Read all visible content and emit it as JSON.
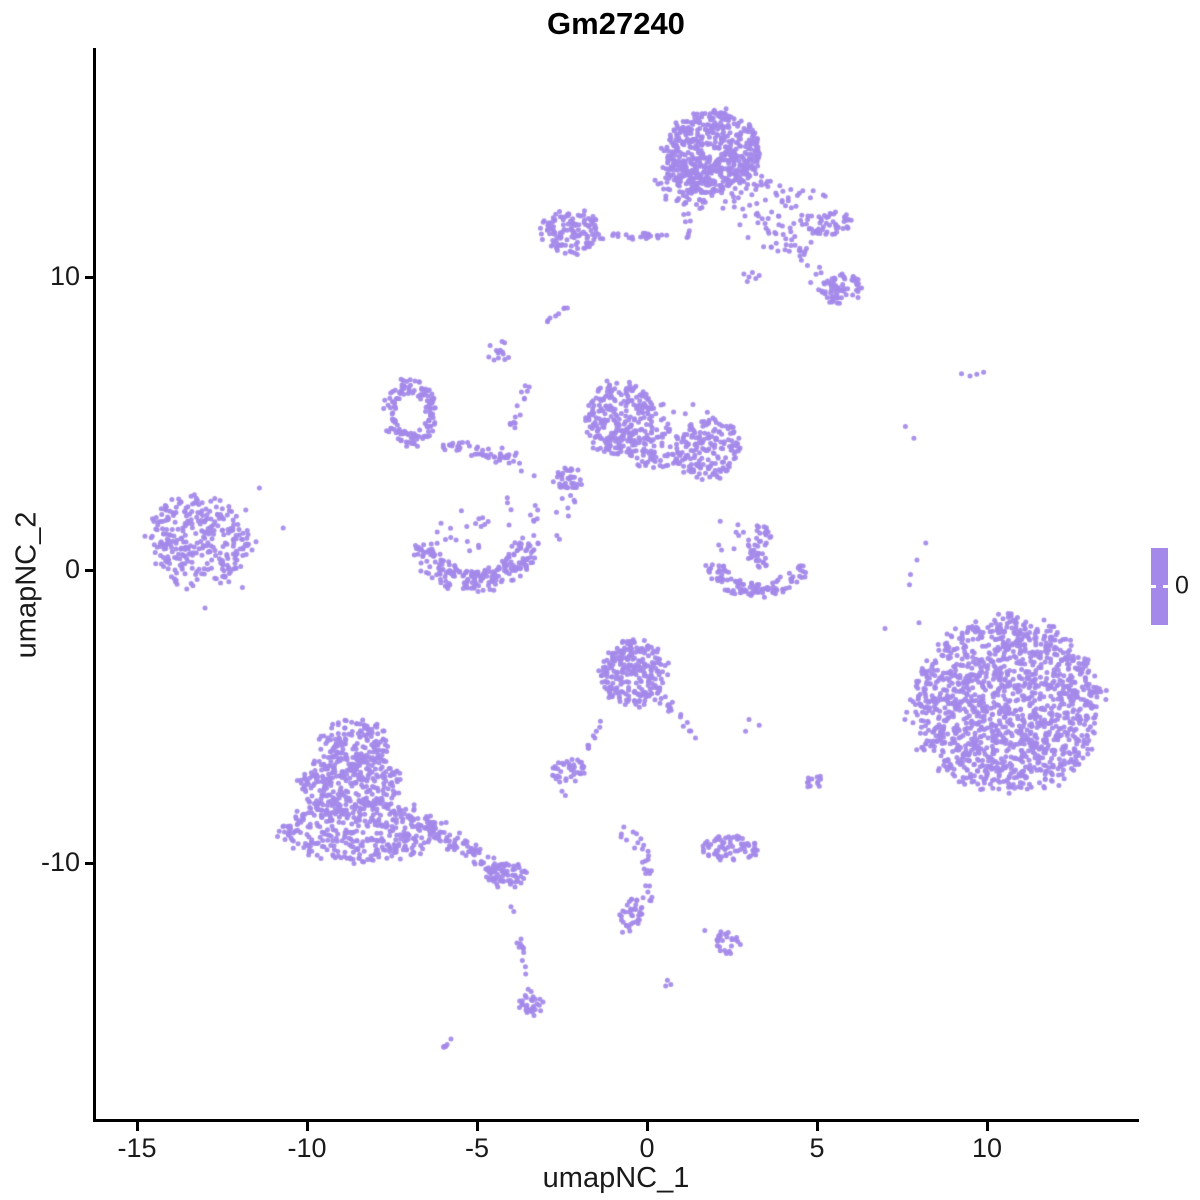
{
  "chart_data": {
    "type": "scatter",
    "title": "Gm27240",
    "xlabel": "umapNC_1",
    "ylabel": "umapNC_2",
    "x_ticks": [
      -15,
      -10,
      -5,
      0,
      5,
      10
    ],
    "y_ticks": [
      -10,
      0,
      10
    ],
    "xlim": [
      -16.2,
      14.4
    ],
    "ylim": [
      -18.8,
      17.8
    ],
    "grid": false,
    "legend": {
      "label": "0",
      "position": "right",
      "color": "#a489ea"
    },
    "point_color": "#a489ea",
    "point_radius": 2.5,
    "clusters": [
      {
        "name": "top-main-dense",
        "type": "blob",
        "cx": 1.9,
        "cy": 14.25,
        "rx": 1.45,
        "ry": 1.45,
        "count": 520
      },
      {
        "name": "top-main-fringe",
        "type": "blob",
        "cx": 1.9,
        "cy": 13.2,
        "rx": 1.7,
        "ry": 0.9,
        "count": 120
      },
      {
        "name": "top-stem",
        "type": "line",
        "x1": 1.05,
        "y1": 13.0,
        "x2": 1.2,
        "y2": 11.2,
        "jx": 0.15,
        "jy": 0.2,
        "count": 14
      },
      {
        "name": "top-left-small",
        "type": "blob",
        "cx": -2.2,
        "cy": 11.55,
        "rx": 0.95,
        "ry": 0.75,
        "count": 130
      },
      {
        "name": "top-left-trail",
        "type": "line",
        "x1": -1.3,
        "y1": 11.45,
        "x2": 0.7,
        "y2": 11.35,
        "jx": 0.3,
        "jy": 0.12,
        "count": 22
      },
      {
        "name": "top-right-scatter",
        "type": "scatter",
        "cx": 4.3,
        "cy": 12.0,
        "rx": 1.6,
        "ry": 1.2,
        "count": 70
      },
      {
        "name": "top-right-knob",
        "type": "blob",
        "cx": 5.3,
        "cy": 11.85,
        "rx": 0.75,
        "ry": 0.45,
        "count": 40
      },
      {
        "name": "top-right-diag-trail",
        "type": "line",
        "x1": 4.2,
        "y1": 11.2,
        "x2": 5.5,
        "y2": 9.4,
        "jx": 0.4,
        "jy": 0.35,
        "count": 30
      },
      {
        "name": "right-upper-dense",
        "type": "blob",
        "cx": 5.75,
        "cy": 9.6,
        "rx": 0.6,
        "ry": 0.55,
        "count": 55
      },
      {
        "name": "w-mark",
        "type": "points",
        "pts": [
          [
            2.85,
            10.1
          ],
          [
            3.0,
            10.0
          ],
          [
            3.1,
            10.15
          ],
          [
            3.2,
            9.95
          ],
          [
            3.3,
            10.05
          ],
          [
            2.95,
            9.85
          ]
        ]
      },
      {
        "name": "tiny-dash-upper",
        "type": "line",
        "x1": -3.0,
        "y1": 8.45,
        "x2": -2.4,
        "y2": 8.95,
        "jx": 0.07,
        "jy": 0.07,
        "count": 8
      },
      {
        "name": "ring-cluster",
        "type": "ring",
        "cx": -6.97,
        "cy": 5.35,
        "r0": 0.45,
        "r1": 0.8,
        "sy": 1.45,
        "count": 140
      },
      {
        "name": "ring-trail",
        "type": "line",
        "x1": -6.1,
        "y1": 4.3,
        "x2": -3.9,
        "y2": 3.8,
        "jx": 0.35,
        "jy": 0.3,
        "count": 50
      },
      {
        "name": "dotted-strand",
        "type": "line",
        "x1": -4.05,
        "y1": 4.5,
        "x2": -3.5,
        "y2": 6.5,
        "jx": 0.15,
        "jy": 0.2,
        "count": 15
      },
      {
        "name": "strand-knob",
        "type": "blob",
        "cx": -4.4,
        "cy": 7.4,
        "rx": 0.35,
        "ry": 0.5,
        "count": 14
      },
      {
        "name": "center-dense",
        "type": "blob",
        "cx": -0.8,
        "cy": 5.1,
        "rx": 1.05,
        "ry": 1.3,
        "count": 260
      },
      {
        "name": "center-fringe",
        "type": "blob",
        "cx": 0.2,
        "cy": 4.2,
        "rx": 0.9,
        "ry": 0.8,
        "count": 60
      },
      {
        "name": "center-right-lobe",
        "type": "blob",
        "cx": 1.8,
        "cy": 4.1,
        "rx": 1.05,
        "ry": 1.0,
        "count": 160
      },
      {
        "name": "center-between",
        "type": "scatter",
        "cx": 0.9,
        "cy": 4.6,
        "rx": 1.3,
        "ry": 1.3,
        "count": 40
      },
      {
        "name": "small-center-blob",
        "type": "blob",
        "cx": -2.3,
        "cy": 3.1,
        "rx": 0.4,
        "ry": 0.45,
        "count": 35
      },
      {
        "name": "mid-sparse",
        "type": "scatter",
        "cx": -3.2,
        "cy": 2.2,
        "rx": 1.3,
        "ry": 1.4,
        "count": 25
      },
      {
        "name": "far-left-cluster",
        "type": "blob",
        "cx": -13.2,
        "cy": 1.0,
        "rx": 1.55,
        "ry": 1.55,
        "count": 300
      },
      {
        "name": "far-left-outliers",
        "type": "points",
        "pts": [
          [
            -11.4,
            2.8
          ],
          [
            -11.8,
            2.05
          ],
          [
            -10.7,
            1.43
          ],
          [
            -11.5,
            0.96
          ],
          [
            -12.06,
            0.34
          ],
          [
            -12.3,
            -0.4
          ],
          [
            -11.9,
            -0.6
          ],
          [
            -13.0,
            -1.3
          ]
        ]
      },
      {
        "name": "left-crescent",
        "type": "arc",
        "cx": -5.05,
        "cy": 0.95,
        "rx": 1.45,
        "ry": 1.35,
        "a0": 180,
        "a1": 360,
        "th": 0.55,
        "count": 210
      },
      {
        "name": "crescent-dots",
        "type": "scatter",
        "cx": -5.3,
        "cy": 1.3,
        "rx": 1.0,
        "ry": 0.8,
        "count": 18
      },
      {
        "name": "right-strand",
        "type": "blob",
        "cx": 3.3,
        "cy": 0.8,
        "rx": 0.38,
        "ry": 0.8,
        "count": 45
      },
      {
        "name": "right-crescent",
        "type": "arc",
        "cx": 3.25,
        "cy": 0.4,
        "rx": 1.3,
        "ry": 1.1,
        "a0": 190,
        "a1": 350,
        "th": 0.45,
        "count": 110
      },
      {
        "name": "right-crescent-dots",
        "type": "scatter",
        "cx": 2.4,
        "cy": 1.2,
        "rx": 0.5,
        "ry": 0.6,
        "count": 8
      },
      {
        "name": "center-bottom",
        "type": "blob",
        "cx": -0.4,
        "cy": -3.5,
        "rx": 1.0,
        "ry": 1.1,
        "count": 240
      },
      {
        "name": "cb-left-tail",
        "type": "line",
        "x1": -1.2,
        "y1": -4.9,
        "x2": -1.75,
        "y2": -6.1,
        "jx": 0.08,
        "jy": 0.15,
        "count": 9
      },
      {
        "name": "cb-right-arm",
        "type": "line",
        "x1": 0.3,
        "y1": -4.1,
        "x2": 1.3,
        "y2": -5.6,
        "jx": 0.25,
        "jy": 0.3,
        "count": 22
      },
      {
        "name": "small-blob-left",
        "type": "blob",
        "cx": -2.3,
        "cy": -6.85,
        "rx": 0.55,
        "ry": 0.42,
        "count": 40
      },
      {
        "name": "small-blob-drips",
        "type": "points",
        "pts": [
          [
            -2.5,
            -7.55
          ],
          [
            -2.4,
            -7.7
          ]
        ]
      },
      {
        "name": "funnel-top",
        "type": "blob",
        "cx": -8.6,
        "cy": -5.9,
        "rx": 1.0,
        "ry": 0.85,
        "count": 130
      },
      {
        "name": "funnel-mid",
        "type": "blob",
        "cx": -8.7,
        "cy": -7.3,
        "rx": 1.5,
        "ry": 1.1,
        "count": 280
      },
      {
        "name": "funnel-base",
        "type": "blob",
        "cx": -8.45,
        "cy": -8.9,
        "rx": 2.3,
        "ry": 1.1,
        "count": 380
      },
      {
        "name": "funnel-tail-band",
        "type": "line",
        "x1": -6.5,
        "y1": -8.6,
        "x2": -4.3,
        "y2": -10.3,
        "jx": 0.5,
        "jy": 0.4,
        "count": 90
      },
      {
        "name": "tail-knot",
        "type": "blob",
        "cx": -4.1,
        "cy": -10.44,
        "rx": 0.6,
        "ry": 0.45,
        "count": 60
      },
      {
        "name": "tail-dotted",
        "type": "line",
        "x1": -4.0,
        "y1": -11.3,
        "x2": -3.4,
        "y2": -14.6,
        "jx": 0.12,
        "jy": 0.25,
        "count": 16
      },
      {
        "name": "tail-end-blob",
        "type": "blob",
        "cx": -3.4,
        "cy": -14.9,
        "rx": 0.38,
        "ry": 0.42,
        "count": 30
      },
      {
        "name": "tiny-dash-bottom",
        "type": "line",
        "x1": -6.05,
        "y1": -16.35,
        "x2": -5.75,
        "y2": -16.0,
        "jx": 0.06,
        "jy": 0.06,
        "count": 6
      },
      {
        "name": "hook-arc",
        "type": "arc",
        "cx": -0.8,
        "cy": -10.6,
        "rx": 0.9,
        "ry": 1.6,
        "a0": -90,
        "a1": 90,
        "th": 0.3,
        "count": 40
      },
      {
        "name": "hook-bottom-dense",
        "type": "blob",
        "cx": -0.45,
        "cy": -11.7,
        "rx": 0.35,
        "ry": 0.5,
        "count": 25
      },
      {
        "name": "hook-drop",
        "type": "points",
        "pts": [
          [
            0.6,
            -14.0
          ],
          [
            0.7,
            -14.15
          ],
          [
            0.55,
            -14.2
          ]
        ]
      },
      {
        "name": "bottom-right-bar",
        "type": "blob",
        "cx": 2.45,
        "cy": -9.5,
        "rx": 0.85,
        "ry": 0.42,
        "count": 75
      },
      {
        "name": "bottom-right-dash",
        "type": "blob",
        "cx": 2.4,
        "cy": -12.7,
        "rx": 0.45,
        "ry": 0.4,
        "count": 26
      },
      {
        "name": "stray-dot",
        "type": "points",
        "pts": [
          [
            1.7,
            -12.3
          ]
        ]
      },
      {
        "name": "small-right-blob",
        "type": "blob",
        "cx": 4.9,
        "cy": -7.2,
        "rx": 0.28,
        "ry": 0.26,
        "count": 12
      },
      {
        "name": "right-big-cluster",
        "type": "blob",
        "cx": 10.55,
        "cy": -4.6,
        "rx": 2.75,
        "ry": 2.95,
        "count": 1400
      },
      {
        "name": "right-side-strays",
        "type": "points",
        "pts": [
          [
            9.25,
            6.7
          ],
          [
            9.5,
            6.62
          ],
          [
            9.7,
            6.68
          ],
          [
            9.9,
            6.75
          ],
          [
            7.6,
            4.9
          ],
          [
            7.85,
            4.5
          ],
          [
            8.2,
            0.92
          ],
          [
            7.94,
            0.34
          ],
          [
            7.75,
            -0.15
          ],
          [
            7.72,
            -0.5
          ],
          [
            8.0,
            -1.8
          ],
          [
            3.0,
            -5.1
          ],
          [
            3.3,
            -5.3
          ],
          [
            2.9,
            -5.5
          ],
          [
            7.0,
            -2.0
          ]
        ]
      }
    ]
  }
}
